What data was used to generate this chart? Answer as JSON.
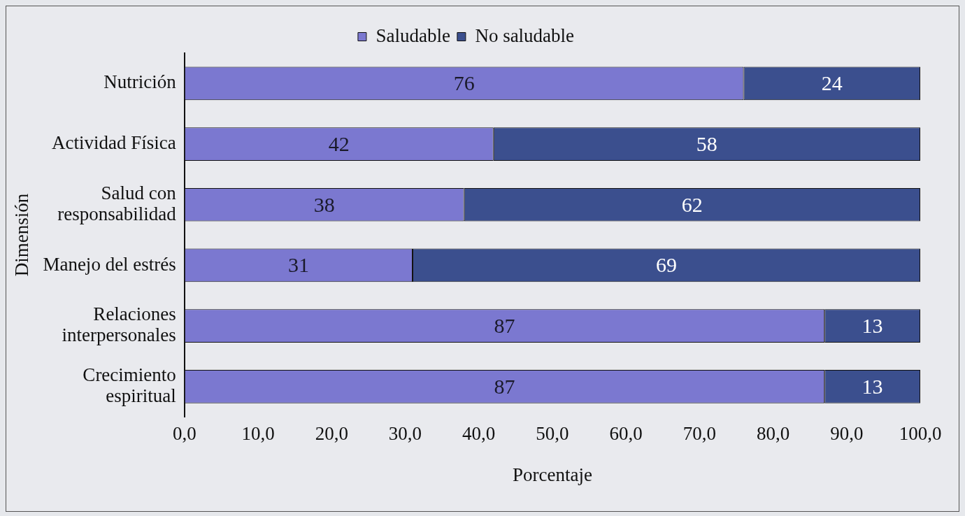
{
  "chart_data": {
    "type": "bar",
    "orientation": "horizontal",
    "stacked": true,
    "xlabel": "Porcentaje",
    "ylabel": "Dimensión",
    "categories": [
      "Nutrición",
      "Actividad Física",
      "Salud con\nresponsabilidad",
      "Manejo del estrés",
      "Relaciones\ninterpersonales",
      "Crecimiento\nespiritual"
    ],
    "series": [
      {
        "name": "Saludable",
        "color": "#7b78d0",
        "values": [
          76,
          42,
          38,
          31,
          87,
          87
        ]
      },
      {
        "name": "No saludable",
        "color": "#3b4f8e",
        "values": [
          24,
          58,
          62,
          69,
          13,
          13
        ]
      }
    ],
    "xlim": [
      0,
      100
    ],
    "xticks": [
      {
        "value": 0,
        "label": "0,0"
      },
      {
        "value": 10,
        "label": "10,0"
      },
      {
        "value": 20,
        "label": "20,0"
      },
      {
        "value": 30,
        "label": "30,0"
      },
      {
        "value": 40,
        "label": "40,0"
      },
      {
        "value": 50,
        "label": "50,0"
      },
      {
        "value": 60,
        "label": "60,0"
      },
      {
        "value": 70,
        "label": "70,0"
      },
      {
        "value": 80,
        "label": "80,0"
      },
      {
        "value": 90,
        "label": "90,0"
      },
      {
        "value": 100,
        "label": "100,0"
      }
    ],
    "data_labels": true,
    "legend": "top",
    "grid": false
  }
}
